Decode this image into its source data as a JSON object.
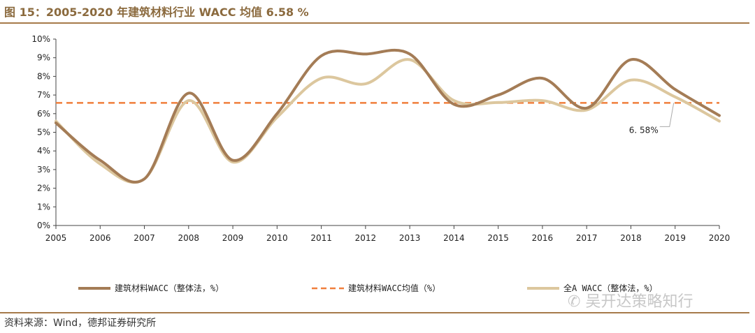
{
  "header": {
    "title": "图 15：2005-2020 年建筑材料行业 WACC 均值 6.58 %"
  },
  "footer": {
    "source": "资料来源：Wind，德邦证券研究所",
    "watermark": "吴开达策略知行"
  },
  "chart_data": {
    "type": "line",
    "title": "2005-2020 年建筑材料行业 WACC 均值 6.58 %",
    "categories": [
      "2005",
      "2006",
      "2007",
      "2008",
      "2009",
      "2010",
      "2011",
      "2012",
      "2013",
      "2014",
      "2015",
      "2016",
      "2017",
      "2018",
      "2019",
      "2020"
    ],
    "ylim": [
      0,
      10
    ],
    "yticks": [
      "0%",
      "1%",
      "2%",
      "3%",
      "4%",
      "5%",
      "6%",
      "7%",
      "8%",
      "9%",
      "10%"
    ],
    "grid": false,
    "legend_position": "bottom",
    "series": [
      {
        "name": "建筑材料WACC（整体法，%）",
        "color": "#A47C56",
        "style": "solid",
        "values": [
          5.5,
          3.5,
          2.5,
          7.1,
          3.5,
          6.0,
          9.1,
          9.2,
          9.2,
          6.5,
          7.0,
          7.9,
          6.3,
          8.9,
          7.3,
          5.9
        ]
      },
      {
        "name": "建筑材料WACC均值（%）",
        "color": "#F07F3C",
        "style": "dashed",
        "values": [
          6.58,
          6.58,
          6.58,
          6.58,
          6.58,
          6.58,
          6.58,
          6.58,
          6.58,
          6.58,
          6.58,
          6.58,
          6.58,
          6.58,
          6.58,
          6.58
        ]
      },
      {
        "name": "全A WACC（整体法，%）",
        "color": "#DCC79E",
        "style": "solid",
        "values": [
          5.6,
          3.3,
          2.5,
          6.7,
          3.4,
          5.8,
          7.9,
          7.6,
          8.9,
          6.7,
          6.6,
          6.7,
          6.2,
          7.8,
          6.9,
          5.6
        ]
      }
    ],
    "annotation": {
      "label": "6. 58%",
      "value": 6.58,
      "near_category": "2019"
    }
  }
}
